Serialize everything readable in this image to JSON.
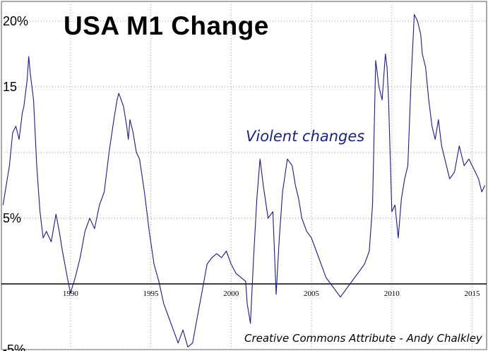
{
  "chart_data": {
    "type": "line",
    "title": "USA M1 Change",
    "annotation": "Violent changes",
    "credit": "Creative Commons Attribute - Andy Chalkley",
    "xlim": [
      1985.7,
      2015.9
    ],
    "ylim": [
      -5,
      21.5
    ],
    "y_ticks": [
      {
        "value": 20,
        "label": "20%"
      },
      {
        "value": 15,
        "label": "15"
      },
      {
        "value": 10,
        "label": ""
      },
      {
        "value": 5,
        "label": "5%"
      },
      {
        "value": -5,
        "label": "-5%"
      }
    ],
    "x_ticks": [
      {
        "value": 1990,
        "label": "1990"
      },
      {
        "value": 1995,
        "label": "1995"
      },
      {
        "value": 2000,
        "label": "2000"
      },
      {
        "value": 2005,
        "label": "2005"
      },
      {
        "value": 2010,
        "label": "2010"
      },
      {
        "value": 2015,
        "label": "2015"
      }
    ],
    "grid": true,
    "zero_line": true,
    "colors": {
      "line": "#1a1a8c",
      "grid": "#999999",
      "zero": "#000000"
    },
    "series": [
      {
        "x": [
          1985.8,
          1986.0,
          1986.2,
          1986.4,
          1986.6,
          1986.8,
          1987.0,
          1987.1,
          1987.2,
          1987.3,
          1987.4,
          1987.5,
          1987.7,
          1987.9,
          1988.1,
          1988.3,
          1988.5,
          1988.8,
          1989.1,
          1989.3,
          1989.5,
          1989.8,
          1990.0,
          1990.3,
          1990.6,
          1990.9,
          1991.2,
          1991.5,
          1991.8,
          1992.1,
          1992.4,
          1992.7,
          1992.9,
          1993.0,
          1993.1,
          1993.3,
          1993.5,
          1993.6,
          1993.7,
          1993.9,
          1994.1,
          1994.3,
          1994.6,
          1994.9,
          1995.2,
          1995.5,
          1995.8,
          1996.1,
          1996.4,
          1996.7,
          1997.0,
          1997.3,
          1997.6,
          1997.9,
          1998.2,
          1998.5,
          1998.8,
          1999.1,
          1999.4,
          1999.7,
          2000.0,
          2000.3,
          2000.6,
          2000.9,
          2001.0,
          2001.2,
          2001.4,
          2001.6,
          2001.8,
          2002.0,
          2002.3,
          2002.6,
          2002.8,
          2003.0,
          2003.2,
          2003.5,
          2003.8,
          2004.0,
          2004.2,
          2004.4,
          2004.7,
          2005.0,
          2005.3,
          2005.6,
          2005.9,
          2006.2,
          2006.5,
          2006.8,
          2007.1,
          2007.4,
          2007.7,
          2008.0,
          2008.3,
          2008.6,
          2008.8,
          2009.0,
          2009.2,
          2009.4,
          2009.6,
          2009.7,
          2009.8,
          2010.0,
          2010.2,
          2010.4,
          2010.6,
          2010.8,
          2011.0,
          2011.2,
          2011.4,
          2011.6,
          2011.8,
          2011.9,
          2012.1,
          2012.3,
          2012.5,
          2012.7,
          2012.9,
          2013.1,
          2013.3,
          2013.6,
          2013.9,
          2014.2,
          2014.5,
          2014.8,
          2015.0,
          2015.2,
          2015.4,
          2015.6,
          2015.8
        ],
        "values": [
          6.0,
          7.5,
          9.0,
          11.5,
          12.0,
          11.0,
          13.0,
          13.5,
          14.5,
          15.5,
          17.3,
          16.0,
          14.0,
          9.0,
          5.5,
          3.5,
          4.0,
          3.2,
          5.3,
          4.0,
          2.5,
          0.5,
          -0.7,
          0.5,
          2.0,
          4.0,
          5.0,
          4.2,
          6.0,
          7.0,
          10.0,
          12.5,
          14.0,
          14.5,
          14.2,
          13.5,
          12.0,
          11.0,
          12.5,
          11.5,
          10.0,
          9.5,
          7.0,
          4.0,
          1.5,
          0.2,
          -1.5,
          -2.5,
          -3.5,
          -4.5,
          -3.5,
          -4.8,
          -4.5,
          -2.5,
          -0.5,
          1.5,
          2.0,
          2.3,
          2.0,
          2.5,
          1.5,
          0.8,
          0.5,
          0.2,
          -1.5,
          -3.0,
          2.0,
          6.5,
          9.5,
          7.5,
          5.0,
          5.5,
          -0.8,
          3.5,
          7.0,
          9.5,
          9.0,
          7.5,
          6.5,
          5.0,
          4.0,
          3.5,
          2.5,
          1.5,
          0.5,
          0.0,
          -0.5,
          -1.0,
          -0.5,
          0.0,
          0.5,
          1.0,
          1.5,
          2.5,
          6.0,
          17.0,
          15.0,
          14.0,
          17.5,
          16.5,
          14.0,
          5.5,
          6.0,
          3.5,
          6.5,
          8.0,
          9.0,
          15.5,
          20.5,
          20.0,
          19.0,
          17.5,
          16.5,
          14.0,
          12.0,
          11.0,
          12.5,
          10.5,
          9.5,
          8.0,
          8.5,
          10.5,
          9.0,
          9.5,
          9.0,
          8.5,
          8.0,
          7.0,
          7.5
        ]
      }
    ]
  }
}
